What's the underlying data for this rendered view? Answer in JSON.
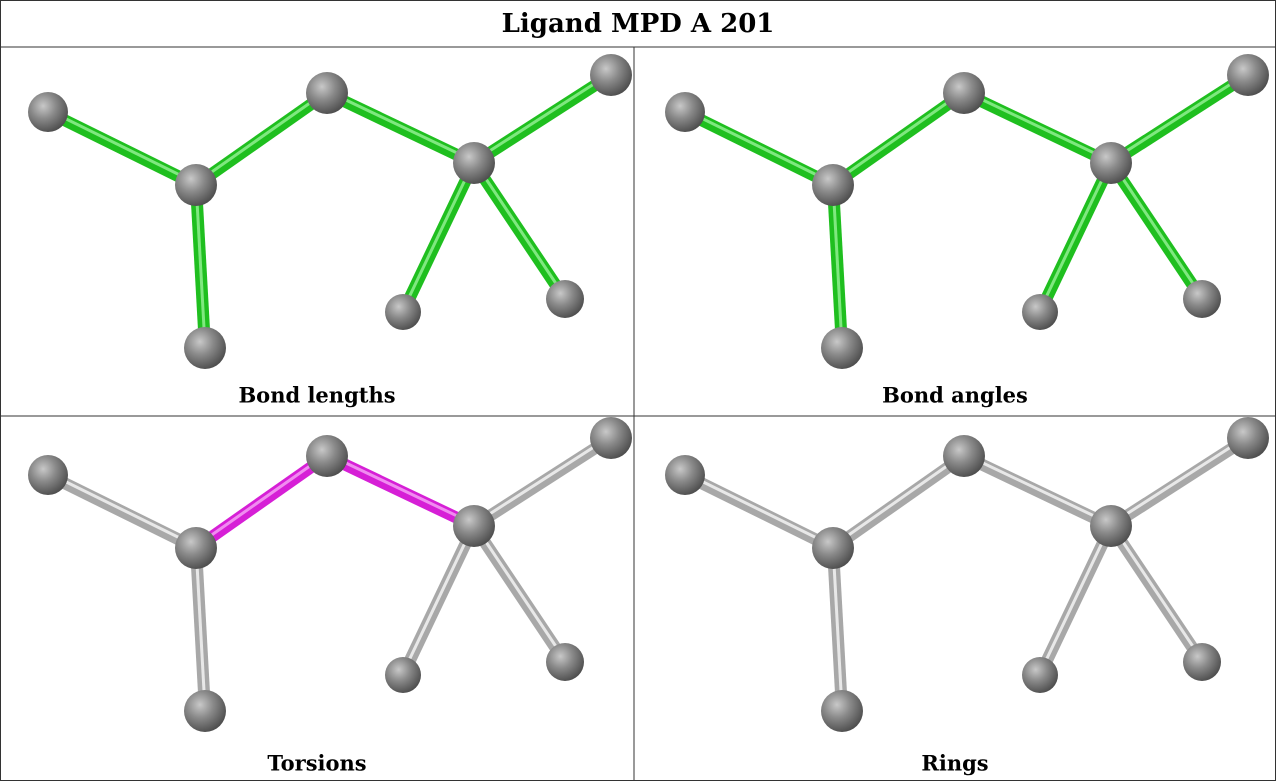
{
  "title": "Ligand MPD A 201",
  "panels": [
    {
      "caption": "Bond lengths"
    },
    {
      "caption": "Bond angles"
    },
    {
      "caption": "Torsions"
    },
    {
      "caption": "Rings"
    }
  ]
}
